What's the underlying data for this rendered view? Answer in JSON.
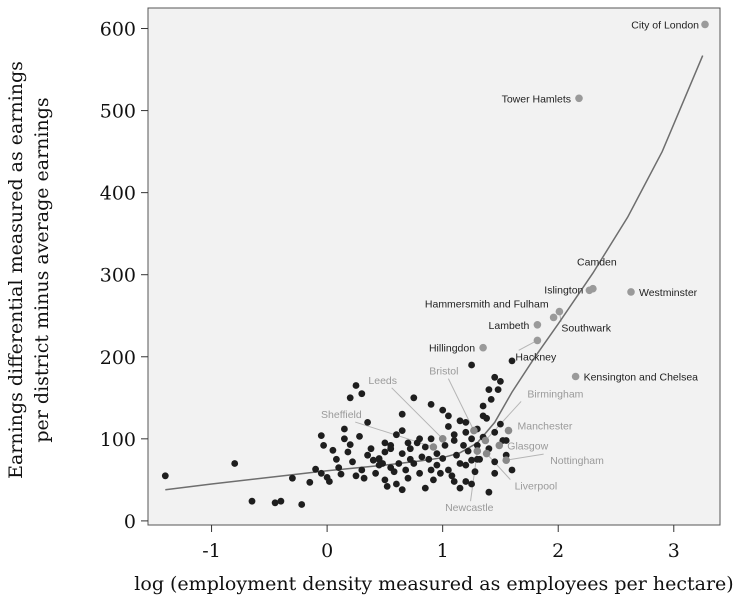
{
  "chart_data": {
    "type": "scatter",
    "xlabel": "log (employment density measured as employees per hectare)",
    "ylabel": [
      "Earnings differential measured as earnings",
      "per district minus average earnings"
    ],
    "xlim": [
      -1.55,
      3.4
    ],
    "ylim": [
      -5,
      625
    ],
    "x_ticks": [
      -1,
      0,
      1,
      2,
      3
    ],
    "y_ticks": [
      0,
      100,
      200,
      300,
      400,
      500,
      600
    ],
    "x_tick_labels": [
      "-1",
      "0",
      "1",
      "2",
      "3"
    ],
    "y_tick_labels": [
      "0",
      "100",
      "200",
      "300",
      "400",
      "500",
      "600"
    ],
    "grid": false,
    "colors": {
      "background": "#f2f2f2",
      "dark_points": "#1e1e1e",
      "london_points": "#9a9a9a",
      "label_dark": "#222222",
      "label_grey": "#9a9a9a",
      "leader": "#b5b5b5",
      "fit": "#6e6e6e"
    },
    "fit_line": {
      "x": [
        -1.4,
        -1.0,
        -0.5,
        0.0,
        0.5,
        0.8,
        1.0,
        1.15,
        1.3,
        1.45,
        1.6,
        1.8,
        2.0,
        2.3,
        2.6,
        2.9,
        3.25
      ],
      "y": [
        38,
        45,
        53,
        61,
        68,
        73,
        77,
        83,
        95,
        120,
        157,
        200,
        240,
        302,
        370,
        450,
        567
      ]
    },
    "points": {
      "x": [
        -1.4,
        -0.8,
        -0.65,
        -0.45,
        -0.4,
        -0.3,
        -0.22,
        -0.15,
        -0.1,
        -0.05,
        -0.05,
        -0.03,
        0.0,
        0.02,
        0.05,
        0.08,
        0.1,
        0.12,
        0.15,
        0.18,
        0.2,
        0.22,
        0.25,
        0.28,
        0.3,
        0.32,
        0.35,
        0.38,
        0.4,
        0.42,
        0.45,
        0.45,
        0.48,
        0.5,
        0.5,
        0.52,
        0.55,
        0.55,
        0.58,
        0.6,
        0.6,
        0.62,
        0.65,
        0.65,
        0.65,
        0.68,
        0.7,
        0.7,
        0.72,
        0.72,
        0.75,
        0.78,
        0.8,
        0.8,
        0.82,
        0.85,
        0.85,
        0.88,
        0.9,
        0.9,
        0.92,
        0.95,
        0.95,
        0.98,
        1.0,
        1.02,
        1.05,
        1.05,
        1.08,
        1.1,
        1.1,
        1.12,
        1.15,
        1.15,
        1.18,
        1.2,
        1.2,
        1.22,
        1.25,
        1.25,
        1.28,
        1.3,
        1.3,
        1.32,
        1.35,
        1.35,
        1.38,
        1.4,
        1.42,
        1.45,
        1.45,
        1.48,
        1.5,
        1.52,
        1.55,
        1.6,
        1.15,
        1.2,
        1.25,
        1.3,
        1.35,
        1.4,
        1.45,
        0.2,
        0.5,
        0.65,
        0.35,
        0.25,
        0.15,
        1.0,
        1.05,
        0.9,
        0.55,
        0.75,
        0.45,
        0.3,
        1.55,
        1.6,
        1.5,
        1.45,
        1.4,
        1.2,
        1.1,
        1.25
      ],
      "y": [
        55,
        70,
        24,
        22,
        24,
        52,
        20,
        47,
        63,
        58,
        104,
        92,
        53,
        48,
        86,
        75,
        65,
        57,
        112,
        84,
        93,
        72,
        55,
        103,
        62,
        52,
        80,
        88,
        74,
        58,
        76,
        68,
        70,
        50,
        84,
        42,
        65,
        92,
        60,
        105,
        45,
        70,
        82,
        110,
        38,
        62,
        95,
        52,
        75,
        88,
        70,
        95,
        100,
        58,
        78,
        40,
        90,
        75,
        62,
        100,
        50,
        82,
        68,
        58,
        76,
        92,
        62,
        128,
        55,
        48,
        98,
        80,
        70,
        122,
        92,
        68,
        108,
        85,
        74,
        100,
        60,
        92,
        112,
        75,
        102,
        140,
        125,
        88,
        148,
        72,
        108,
        160,
        118,
        98,
        80,
        62,
        40,
        48,
        45,
        75,
        128,
        35,
        58,
        150,
        95,
        130,
        120,
        165,
        100,
        135,
        115,
        142,
        88,
        150,
        75,
        155,
        98,
        195,
        170,
        175,
        160,
        120,
        105,
        190
      ],
      "color": "#1e1e1e"
    },
    "labeled_points": [
      {
        "name": "City of London",
        "x": 3.27,
        "y": 605,
        "color": "#9a9a9a",
        "label_style": "dark"
      },
      {
        "name": "Tower Hamlets",
        "x": 2.18,
        "y": 515,
        "color": "#9a9a9a",
        "label_style": "dark"
      },
      {
        "name": "Camden",
        "x": 2.3,
        "y": 283,
        "color": "#9a9a9a",
        "label_style": "dark"
      },
      {
        "name": "Islington",
        "x": 2.27,
        "y": 281,
        "color": "#9a9a9a",
        "label_style": "dark"
      },
      {
        "name": "Westminster",
        "x": 2.63,
        "y": 279,
        "color": "#9a9a9a",
        "label_style": "dark"
      },
      {
        "name": "Hammersmith and Fulham",
        "x": 1.96,
        "y": 248,
        "color": "#9a9a9a",
        "label_style": "dark"
      },
      {
        "name": "Southwark",
        "x": 2.01,
        "y": 255,
        "color": "#9a9a9a",
        "label_style": "dark"
      },
      {
        "name": "Lambeth",
        "x": 1.82,
        "y": 239,
        "color": "#9a9a9a",
        "label_style": "dark"
      },
      {
        "name": "Hackney",
        "x": 1.82,
        "y": 220,
        "color": "#9a9a9a",
        "label_style": "dark"
      },
      {
        "name": "Hillingdon",
        "x": 1.35,
        "y": 211,
        "color": "#9a9a9a",
        "label_style": "dark"
      },
      {
        "name": "Kensington and Chelsea",
        "x": 2.15,
        "y": 176,
        "color": "#9a9a9a",
        "label_style": "dark"
      },
      {
        "name": "Leeds",
        "x": 1.0,
        "y": 100,
        "color": "#8a8a8a",
        "label_style": "grey"
      },
      {
        "name": "Bristol",
        "x": 1.27,
        "y": 110,
        "color": "#8a8a8a",
        "label_style": "grey"
      },
      {
        "name": "Sheffield",
        "x": 0.92,
        "y": 90,
        "color": "#8a8a8a",
        "label_style": "grey"
      },
      {
        "name": "Birmingham",
        "x": 1.37,
        "y": 98,
        "color": "#8a8a8a",
        "label_style": "grey"
      },
      {
        "name": "Manchester",
        "x": 1.57,
        "y": 110,
        "color": "#8a8a8a",
        "label_style": "grey"
      },
      {
        "name": "Glasgow",
        "x": 1.49,
        "y": 92,
        "color": "#8a8a8a",
        "label_style": "grey"
      },
      {
        "name": "Nottingham",
        "x": 1.55,
        "y": 74,
        "color": "#8a8a8a",
        "label_style": "grey"
      },
      {
        "name": "Liverpool",
        "x": 1.38,
        "y": 82,
        "color": "#8a8a8a",
        "label_style": "grey"
      },
      {
        "name": "Newcastle",
        "x": 1.3,
        "y": 85,
        "color": "#8a8a8a",
        "label_style": "grey"
      }
    ]
  }
}
